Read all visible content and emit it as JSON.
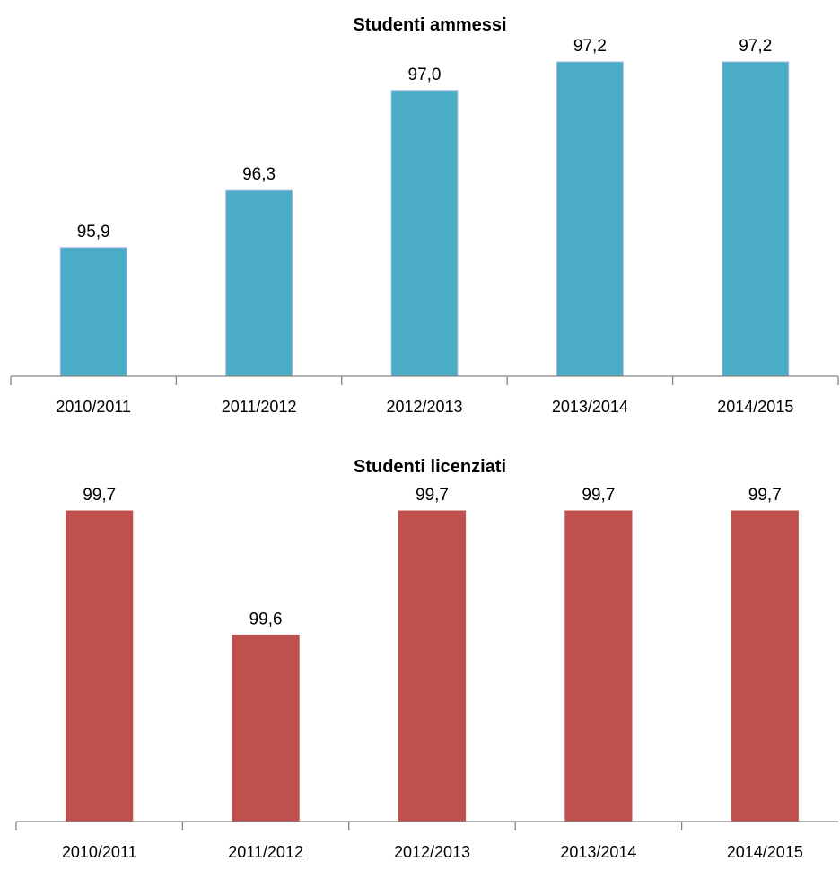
{
  "chart_data": [
    {
      "type": "bar",
      "title": "Studenti ammessi",
      "categories": [
        "2010/2011",
        "2011/2012",
        "2012/2013",
        "2013/2014",
        "2014/2015"
      ],
      "values": [
        95.9,
        96.3,
        97.0,
        97.2,
        97.2
      ],
      "value_labels": [
        "95,9",
        "96,3",
        "97,0",
        "97,2",
        "97,2"
      ],
      "ylim": [
        95.0,
        97.2
      ],
      "color": "#4BACC6",
      "xlabel": "",
      "ylabel": "",
      "grid": false,
      "legend": "none"
    },
    {
      "type": "bar",
      "title": "Studenti licenziati",
      "categories": [
        "2010/2011",
        "2011/2012",
        "2012/2013",
        "2013/2014",
        "2014/2015"
      ],
      "values": [
        99.7,
        99.6,
        99.7,
        99.7,
        99.7
      ],
      "value_labels": [
        "99,7",
        "99,6",
        "99,7",
        "99,7",
        "99,7"
      ],
      "ylim": [
        99.45,
        99.7
      ],
      "color": "#C0504D",
      "xlabel": "",
      "ylabel": "",
      "grid": false,
      "legend": "none"
    }
  ]
}
